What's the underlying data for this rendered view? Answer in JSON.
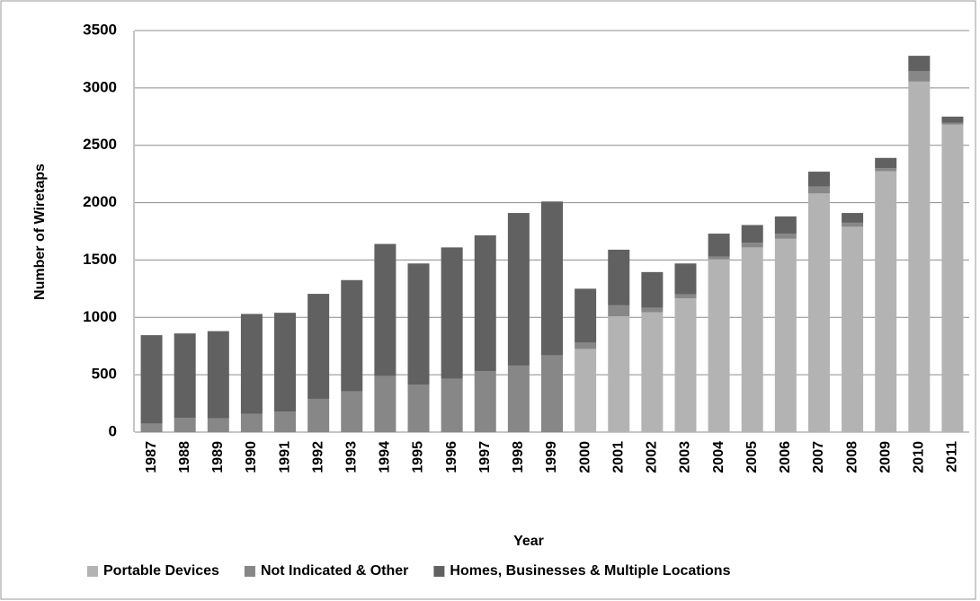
{
  "chart_data": {
    "type": "stacked_bar",
    "x_label": "Year",
    "y_label": "Number of Wiretaps",
    "categories": [
      "1987",
      "1988",
      "1989",
      "1990",
      "1991",
      "1992",
      "1993",
      "1994",
      "1995",
      "1996",
      "1997",
      "1998",
      "1999",
      "2000",
      "2001",
      "2002",
      "2003",
      "2004",
      "2005",
      "2006",
      "2007",
      "2008",
      "2009",
      "2010",
      "2011"
    ],
    "series": [
      {
        "name": "Portable Devices",
        "color": "#b3b3b3",
        "values": [
          0,
          0,
          0,
          0,
          0,
          0,
          0,
          0,
          0,
          0,
          0,
          0,
          0,
          725,
          1010,
          1045,
          1165,
          1505,
          1610,
          1685,
          2080,
          1790,
          2275,
          3055,
          2680
        ]
      },
      {
        "name": "Not Indicated & Other",
        "color": "#878787",
        "values": [
          75,
          125,
          120,
          160,
          180,
          290,
          355,
          490,
          415,
          465,
          530,
          580,
          670,
          55,
          95,
          40,
          35,
          25,
          40,
          45,
          60,
          35,
          25,
          90,
          15
        ]
      },
      {
        "name": "Homes, Businesses & Multiple Locations",
        "color": "#616161",
        "values": [
          770,
          735,
          760,
          870,
          860,
          915,
          970,
          1150,
          1055,
          1145,
          1185,
          1330,
          1340,
          470,
          485,
          310,
          270,
          200,
          155,
          150,
          130,
          85,
          90,
          135,
          55
        ]
      }
    ],
    "ylim": [
      0,
      3500
    ],
    "yticks": [
      0,
      500,
      1000,
      1500,
      2000,
      2500,
      3000,
      3500
    ],
    "grid": true,
    "legend": "bottom"
  }
}
